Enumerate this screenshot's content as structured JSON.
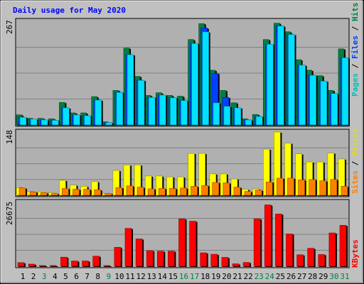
{
  "chart_data": [
    {
      "type": "bar",
      "title": "Daily usage for May 2020",
      "categories": [
        "1",
        "2",
        "3",
        "4",
        "5",
        "6",
        "7",
        "8",
        "9",
        "10",
        "11",
        "12",
        "13",
        "14",
        "15",
        "16",
        "17",
        "18",
        "19",
        "20",
        "21",
        "22",
        "23",
        "24",
        "25",
        "26",
        "27",
        "28",
        "29",
        "30",
        "31"
      ],
      "weekend_days": [
        "3",
        "9",
        "16",
        "17",
        "23",
        "24",
        "30",
        "31"
      ],
      "ymax_label": "267",
      "ylim": [
        0,
        267
      ],
      "legend": [
        "Pages",
        "Files",
        "Hits"
      ],
      "series": [
        {
          "name": "Hits",
          "color": "#008040",
          "values": [
            26,
            17,
            17,
            16,
            58,
            31,
            31,
            73,
            8,
            89,
            198,
            125,
            76,
            83,
            76,
            74,
            220,
            261,
            141,
            89,
            57,
            16,
            27,
            220,
            262,
            240,
            168,
            141,
            127,
            89,
            196
          ]
        },
        {
          "name": "Files",
          "color": "#0040ff",
          "values": [
            20,
            15,
            13,
            12,
            44,
            26,
            24,
            64,
            6,
            84,
            181,
            115,
            71,
            77,
            70,
            63,
            210,
            250,
            133,
            71,
            44,
            13,
            22,
            208,
            255,
            233,
            154,
            128,
            113,
            81,
            173
          ]
        },
        {
          "name": "Pages",
          "color": "#00e0ff",
          "values": [
            20,
            15,
            13,
            12,
            44,
            26,
            24,
            64,
            6,
            84,
            181,
            115,
            71,
            77,
            70,
            63,
            210,
            240,
            57,
            48,
            44,
            13,
            22,
            208,
            255,
            233,
            154,
            128,
            113,
            81,
            173
          ]
        }
      ]
    },
    {
      "type": "bar",
      "ymax_label": "148",
      "ylim": [
        0,
        148
      ],
      "legend": [
        "Sites",
        "Visits"
      ],
      "series": [
        {
          "name": "Visits",
          "color": "#ffff00",
          "values": [
            18,
            9,
            8,
            6,
            35,
            24,
            21,
            32,
            4,
            58,
            71,
            71,
            45,
            45,
            43,
            43,
            98,
            98,
            50,
            50,
            38,
            14,
            15,
            108,
            148,
            122,
            97,
            78,
            78,
            99,
            85
          ]
        },
        {
          "name": "Sites",
          "color": "#ff8000",
          "values": [
            17,
            8,
            6,
            4,
            16,
            14,
            14,
            13,
            4,
            18,
            22,
            19,
            15,
            16,
            16,
            17,
            21,
            23,
            30,
            29,
            19,
            9,
            12,
            31,
            40,
            40,
            36,
            37,
            34,
            37,
            21
          ]
        }
      ]
    },
    {
      "type": "bar",
      "ymax_label": "26675",
      "ylim": [
        0,
        26675
      ],
      "legend": [
        "KBytes"
      ],
      "series": [
        {
          "name": "KBytes",
          "color": "#ff0000",
          "values": [
            1500,
            900,
            200,
            200,
            3800,
            2200,
            2200,
            4200,
            300,
            7900,
            15800,
            11400,
            6500,
            6300,
            6300,
            19800,
            18800,
            5600,
            5000,
            3700,
            1000,
            1600,
            19800,
            25600,
            21800,
            13500,
            4800,
            7500,
            4900,
            13900,
            17100
          ]
        }
      ]
    }
  ]
}
